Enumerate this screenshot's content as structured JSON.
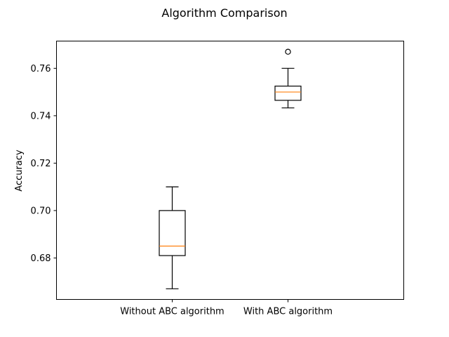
{
  "chart_data": {
    "type": "boxplot",
    "title": "Algorithm Comparison",
    "xlabel": "",
    "ylabel": "Accuracy",
    "ylim": [
      0.6625,
      0.7715
    ],
    "yticks": [
      0.68,
      0.7,
      0.72,
      0.74,
      0.76
    ],
    "ytick_labels": [
      "0.68",
      "0.70",
      "0.72",
      "0.74",
      "0.76"
    ],
    "categories": [
      "Without ABC algorithm",
      "With ABC algorithm"
    ],
    "boxes": [
      {
        "category": "Without ABC algorithm",
        "whisker_low": 0.667,
        "q1": 0.681,
        "median": 0.685,
        "q3": 0.7,
        "whisker_high": 0.71,
        "outliers": []
      },
      {
        "category": "With ABC algorithm",
        "whisker_low": 0.7433,
        "q1": 0.7465,
        "median": 0.75,
        "q3": 0.7525,
        "whisker_high": 0.76,
        "outliers": [
          0.767
        ]
      }
    ],
    "grid": false,
    "colors": {
      "box": "#000000",
      "median": "#ff7f0e",
      "axes": "#000000",
      "background": "#ffffff"
    }
  }
}
